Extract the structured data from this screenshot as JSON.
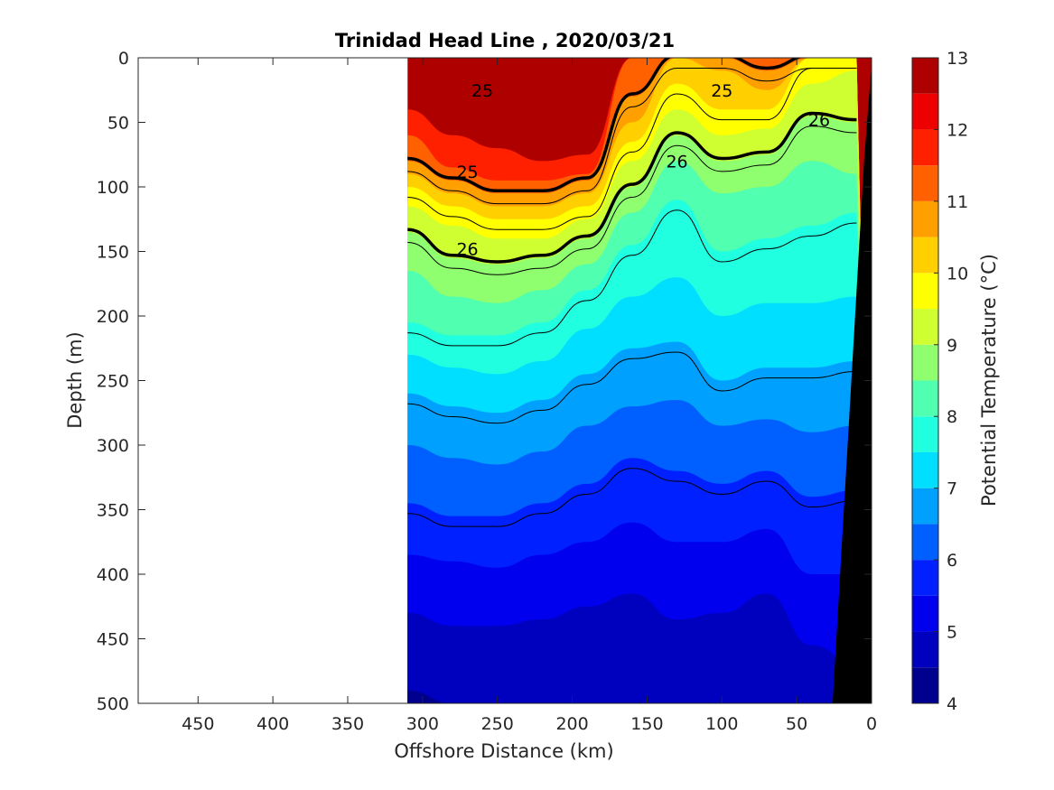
{
  "chart_data": {
    "type": "heatmap",
    "title": "Trinidad Head Line , 2020/03/21",
    "xlabel": "Offshore Distance (km)",
    "ylabel": "Depth (m)",
    "xlim": [
      490,
      0
    ],
    "ylim": [
      500,
      0
    ],
    "x_reversed": true,
    "y_reversed": true,
    "xticks": [
      450,
      400,
      350,
      300,
      250,
      200,
      150,
      100,
      50,
      0
    ],
    "yticks": [
      0,
      50,
      100,
      150,
      200,
      250,
      300,
      350,
      400,
      450,
      500
    ],
    "data_extent_km": [
      310,
      0
    ],
    "colorbar": {
      "label": "Potential Temperature (°C)",
      "min": 4,
      "max": 13,
      "ticks": [
        4,
        5,
        6,
        7,
        8,
        9,
        10,
        11,
        12,
        13
      ],
      "bins": [
        {
          "lo": 4.0,
          "hi": 4.5,
          "color": "#00008f"
        },
        {
          "lo": 4.5,
          "hi": 5.0,
          "color": "#0000bf"
        },
        {
          "lo": 5.0,
          "hi": 5.5,
          "color": "#0000ef"
        },
        {
          "lo": 5.5,
          "hi": 6.0,
          "color": "#0020ff"
        },
        {
          "lo": 6.0,
          "hi": 6.5,
          "color": "#0060ff"
        },
        {
          "lo": 6.5,
          "hi": 7.0,
          "color": "#00a0ff"
        },
        {
          "lo": 7.0,
          "hi": 7.5,
          "color": "#00dfff"
        },
        {
          "lo": 7.5,
          "hi": 8.0,
          "color": "#20ffdf"
        },
        {
          "lo": 8.0,
          "hi": 8.5,
          "color": "#50ffaf"
        },
        {
          "lo": 8.5,
          "hi": 9.0,
          "color": "#8fff70"
        },
        {
          "lo": 9.0,
          "hi": 9.5,
          "color": "#cfff30"
        },
        {
          "lo": 9.5,
          "hi": 10.0,
          "color": "#ffff00"
        },
        {
          "lo": 10.0,
          "hi": 10.5,
          "color": "#ffcf00"
        },
        {
          "lo": 10.5,
          "hi": 11.0,
          "color": "#ff9f00"
        },
        {
          "lo": 11.0,
          "hi": 11.5,
          "color": "#ff6000"
        },
        {
          "lo": 11.5,
          "hi": 12.0,
          "color": "#ff2000"
        },
        {
          "lo": 12.0,
          "hi": 12.5,
          "color": "#ef0000"
        },
        {
          "lo": 12.5,
          "hi": 13.0,
          "color": "#af0000"
        }
      ]
    },
    "temperature_section": {
      "distances_km": [
        310,
        280,
        250,
        220,
        190,
        160,
        130,
        100,
        70,
        40,
        10
      ],
      "isotherm_depths_m": [
        {
          "temp": 12.0,
          "depths": [
            40,
            60,
            70,
            80,
            75,
            0,
            0,
            0,
            0,
            0,
            0
          ]
        },
        {
          "temp": 11.5,
          "depths": [
            60,
            85,
            95,
            95,
            90,
            0,
            0,
            0,
            0,
            0,
            0
          ]
        },
        {
          "temp": 11.0,
          "depths": [
            80,
            95,
            105,
            105,
            95,
            30,
            0,
            0,
            10,
            0,
            0
          ]
        },
        {
          "temp": 10.5,
          "depths": [
            90,
            105,
            115,
            115,
            105,
            50,
            0,
            10,
            25,
            0,
            0
          ]
        },
        {
          "temp": 10.0,
          "depths": [
            100,
            115,
            125,
            125,
            115,
            65,
            20,
            40,
            40,
            0,
            0
          ]
        },
        {
          "temp": 9.5,
          "depths": [
            115,
            130,
            140,
            140,
            125,
            80,
            40,
            60,
            55,
            20,
            10
          ]
        },
        {
          "temp": 9.0,
          "depths": [
            135,
            155,
            160,
            155,
            140,
            100,
            60,
            80,
            75,
            45,
            50
          ]
        },
        {
          "temp": 8.5,
          "depths": [
            165,
            185,
            190,
            180,
            160,
            120,
            80,
            105,
            100,
            80,
            90
          ]
        },
        {
          "temp": 8.0,
          "depths": [
            205,
            215,
            215,
            205,
            180,
            145,
            110,
            150,
            140,
            130,
            120
          ]
        },
        {
          "temp": 7.5,
          "depths": [
            230,
            240,
            245,
            235,
            210,
            185,
            170,
            200,
            190,
            190,
            185
          ]
        },
        {
          "temp": 7.0,
          "depths": [
            260,
            270,
            275,
            265,
            245,
            225,
            220,
            250,
            240,
            240,
            235
          ]
        },
        {
          "temp": 6.5,
          "depths": [
            300,
            310,
            315,
            305,
            285,
            270,
            265,
            285,
            280,
            290,
            285
          ]
        },
        {
          "temp": 6.0,
          "depths": [
            345,
            355,
            355,
            345,
            330,
            310,
            320,
            330,
            320,
            340,
            335
          ]
        },
        {
          "temp": 5.5,
          "depths": [
            385,
            390,
            395,
            385,
            375,
            360,
            375,
            375,
            365,
            400,
            400
          ]
        },
        {
          "temp": 5.0,
          "depths": [
            430,
            440,
            440,
            435,
            425,
            415,
            435,
            430,
            415,
            455,
            470
          ]
        },
        {
          "temp": 4.5,
          "depths": [
            490,
            500,
            500,
            500,
            500,
            500,
            500,
            500,
            500,
            500,
            500
          ]
        }
      ]
    },
    "density_contours": [
      {
        "value": 25,
        "label": "25",
        "is_labeled": true
      },
      {
        "value": 26,
        "label": "26",
        "is_labeled": true
      }
    ]
  }
}
